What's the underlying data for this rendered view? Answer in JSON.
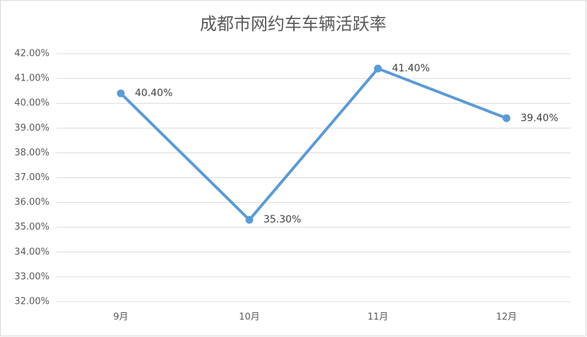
{
  "chart_data": {
    "type": "line",
    "title": "成都市网约车车辆活跃率",
    "categories": [
      "9月",
      "10月",
      "11月",
      "12月"
    ],
    "series": [
      {
        "name": "活跃率",
        "color": "#5b9bd5",
        "values": [
          40.4,
          35.3,
          41.4,
          39.4
        ],
        "value_labels": [
          "40.40%",
          "35.30%",
          "41.40%",
          "39.40%"
        ]
      }
    ],
    "ylim": [
      32,
      42
    ],
    "yticks": [
      {
        "value": 32,
        "label": "32.00%"
      },
      {
        "value": 33,
        "label": "33.00%"
      },
      {
        "value": 34,
        "label": "34.00%"
      },
      {
        "value": 35,
        "label": "35.00%"
      },
      {
        "value": 36,
        "label": "36.00%"
      },
      {
        "value": 37,
        "label": "37.00%"
      },
      {
        "value": 38,
        "label": "38.00%"
      },
      {
        "value": 39,
        "label": "39.00%"
      },
      {
        "value": 40,
        "label": "40.00%"
      },
      {
        "value": 41,
        "label": "41.00%"
      },
      {
        "value": 42,
        "label": "42.00%"
      }
    ],
    "grid": true
  }
}
